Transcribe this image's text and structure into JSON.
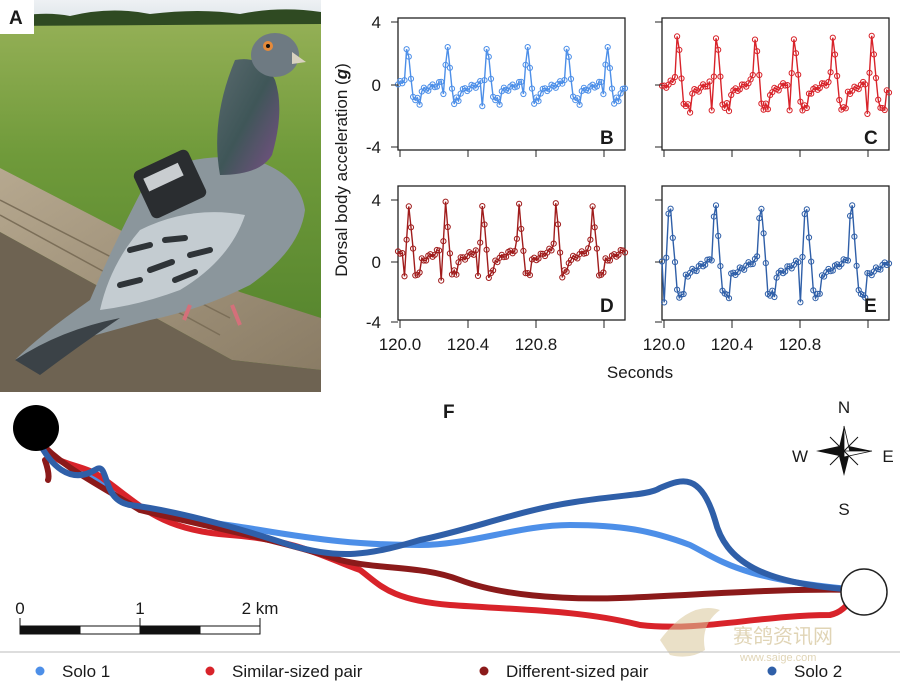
{
  "panel_labels": {
    "a": "A",
    "b": "B",
    "c": "C",
    "d": "D",
    "e": "E",
    "f": "F"
  },
  "photo": {
    "subject": "pigeon wearing a GPS/accelerometer backpack on a fence"
  },
  "axes": {
    "ylabel": "Dorsal body acceleration (g)",
    "ylabel_prefix": "Dorsal body acceleration (",
    "ylabel_unit": "g",
    "ylabel_suffix": ")",
    "xlabel": "Seconds",
    "yticks": [
      "4",
      "0",
      "-4"
    ],
    "xticks": [
      "120.0",
      "120.4",
      "120.8"
    ]
  },
  "compass": {
    "n": "N",
    "s": "S",
    "e": "E",
    "w": "W"
  },
  "scalebar": {
    "ticks": [
      "0",
      "1",
      "2 km"
    ]
  },
  "legend": [
    {
      "label": "Solo 1",
      "color": "#4d8fe8"
    },
    {
      "label": "Similar-sized pair",
      "color": "#d8232a"
    },
    {
      "label": "Different-sized pair",
      "color": "#8b1a1a"
    },
    {
      "label": "Solo 2",
      "color": "#2f5fa8"
    }
  ],
  "watermark": {
    "cn": "赛鸽资讯网",
    "url": "www.saige.com"
  },
  "chart_data": [
    {
      "panel": "B",
      "type": "line",
      "series_color": "#4d8fe8",
      "xlim": [
        120.0,
        121.05
      ],
      "ylim": [
        -4,
        4
      ],
      "wingbeat_period_s": 0.185,
      "phase_s": 0.02,
      "peak_g": 2.4,
      "trough_g": -1.3
    },
    {
      "panel": "C",
      "type": "line",
      "series_color": "#d8232a",
      "xlim": [
        120.0,
        121.05
      ],
      "ylim": [
        -4,
        4
      ],
      "wingbeat_period_s": 0.18,
      "phase_s": 0.05,
      "peak_g": 3.2,
      "trough_g": -1.7
    },
    {
      "panel": "D",
      "type": "line",
      "series_color": "#a01c1c",
      "xlim": [
        120.0,
        121.05
      ],
      "ylim": [
        -4,
        4
      ],
      "wingbeat_period_s": 0.17,
      "phase_s": 0.03,
      "peak_g": 3.0,
      "trough_g": -1.5
    },
    {
      "panel": "E",
      "type": "line",
      "series_color": "#2f5fa8",
      "xlim": [
        120.0,
        121.05
      ],
      "ylim": [
        -4,
        4
      ],
      "wingbeat_period_s": 0.21,
      "phase_s": 0.01,
      "peak_g": 3.5,
      "trough_g": -2.8
    },
    {
      "panel": "F",
      "type": "map",
      "title": "F",
      "scale_km": [
        0,
        1,
        2
      ],
      "tracks": [
        "Solo 1",
        "Similar-sized pair",
        "Different-sized pair",
        "Solo 2"
      ]
    }
  ]
}
